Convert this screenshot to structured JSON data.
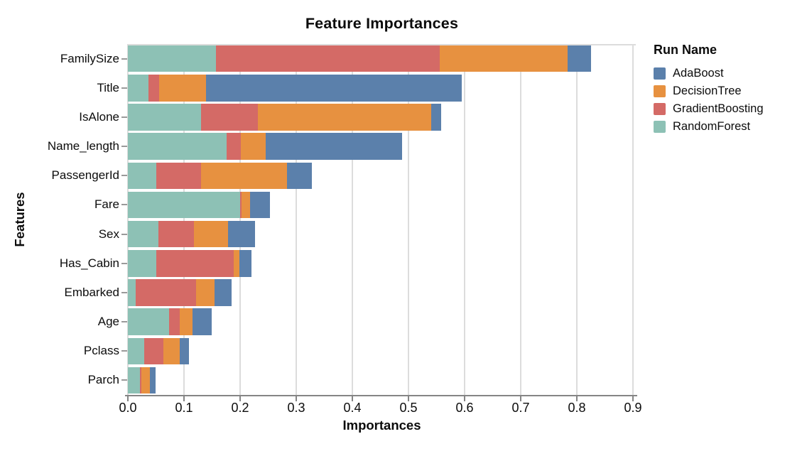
{
  "chart_data": {
    "type": "bar",
    "orientation": "horizontal",
    "stacked": true,
    "title": "Feature Importances",
    "xlabel": "Importances",
    "ylabel": "Features",
    "xlim": [
      0,
      0.9
    ],
    "x_tick_labels": [
      "0.0",
      "0.1",
      "0.2",
      "0.3",
      "0.4",
      "0.5",
      "0.6",
      "0.7",
      "0.8",
      "0.9"
    ],
    "grid": true,
    "categories": [
      "FamilySize",
      "Title",
      "IsAlone",
      "Name_length",
      "PassengerId",
      "Fare",
      "Sex",
      "Has_Cabin",
      "Embarked",
      "Age",
      "Pclass",
      "Parch"
    ],
    "series": [
      {
        "name": "RandomForest",
        "color": "#8dc1b5",
        "values": [
          0.157,
          0.037,
          0.13,
          0.176,
          0.05,
          0.2,
          0.055,
          0.05,
          0.014,
          0.073,
          0.029,
          0.022
        ]
      },
      {
        "name": "GradientBoosting",
        "color": "#d46a66",
        "values": [
          0.399,
          0.019,
          0.102,
          0.025,
          0.081,
          0.002,
          0.063,
          0.139,
          0.107,
          0.02,
          0.034,
          0.002
        ]
      },
      {
        "name": "DecisionTree",
        "color": "#e79140",
        "values": [
          0.227,
          0.083,
          0.308,
          0.044,
          0.153,
          0.016,
          0.06,
          0.01,
          0.033,
          0.022,
          0.03,
          0.015
        ]
      },
      {
        "name": "AdaBoost",
        "color": "#5b80ab",
        "values": [
          0.042,
          0.456,
          0.018,
          0.244,
          0.044,
          0.035,
          0.048,
          0.021,
          0.031,
          0.035,
          0.016,
          0.01
        ]
      }
    ],
    "totals": [
      0.825,
      0.595,
      0.558,
      0.489,
      0.328,
      0.253,
      0.226,
      0.22,
      0.185,
      0.15,
      0.109,
      0.049
    ],
    "legend": {
      "title": "Run Name",
      "position": "right",
      "items": [
        "AdaBoost",
        "DecisionTree",
        "GradientBoosting",
        "RandomForest"
      ]
    }
  }
}
